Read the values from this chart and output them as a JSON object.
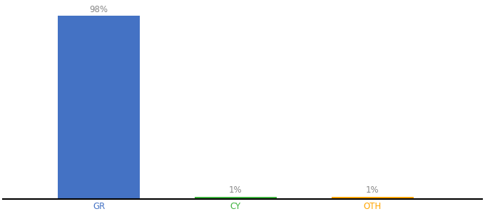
{
  "categories": [
    "GR",
    "CY",
    "OTH"
  ],
  "values": [
    98,
    1,
    1
  ],
  "bar_colors": [
    "#4472c4",
    "#3db33d",
    "#ffa500"
  ],
  "labels": [
    "98%",
    "1%",
    "1%"
  ],
  "label_color": "#888888",
  "tick_colors": [
    "#4472c4",
    "#3db33d",
    "#ffa500"
  ],
  "ylim": [
    0,
    105
  ],
  "background_color": "#ffffff",
  "bar_width": 0.6,
  "label_fontsize": 8.5,
  "xlabel_fontsize": 8.5,
  "x_positions": [
    1,
    2,
    3
  ],
  "xlim": [
    0.3,
    3.8
  ]
}
